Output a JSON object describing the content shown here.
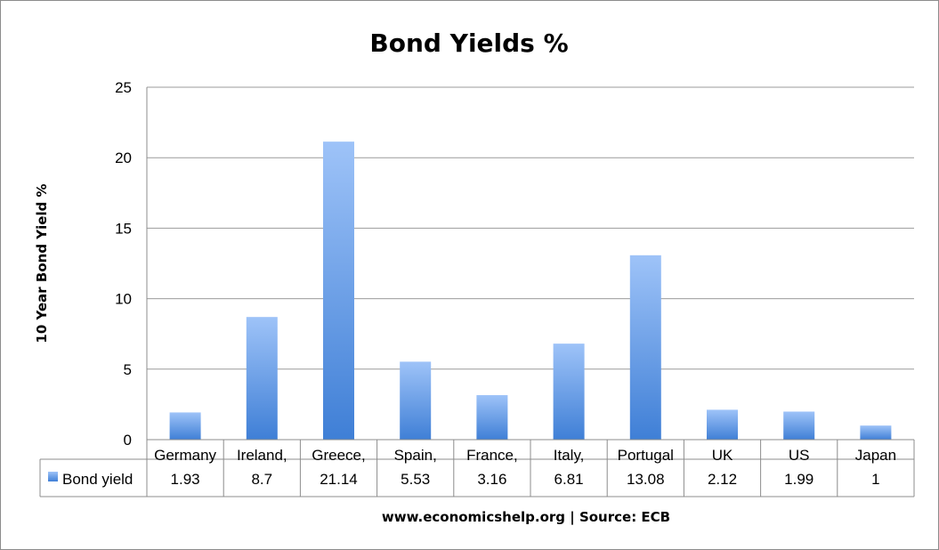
{
  "chart_data": {
    "type": "bar",
    "title": "Bond Yields %",
    "ylabel": "10 Year Bond Yield  %",
    "xlabel": "",
    "categories": [
      "Germany",
      "Ireland,",
      "Greece,",
      "Spain,",
      "France,",
      "Italy,",
      "Portugal",
      "UK",
      "US",
      "Japan"
    ],
    "series": [
      {
        "name": "Bond yield",
        "values": [
          1.93,
          8.7,
          21.14,
          5.53,
          3.16,
          6.81,
          13.08,
          2.12,
          1.99,
          1
        ]
      }
    ],
    "data_table_values": [
      "1.93",
      "8.7",
      "21.14",
      "5.53",
      "3.16",
      "6.81",
      "13.08",
      "2.12",
      "1.99",
      "1"
    ],
    "ylim": [
      0,
      25
    ],
    "yticks": [
      "0",
      "5",
      "10",
      "15",
      "20",
      "25"
    ],
    "grid": true,
    "legend": "data-table-left",
    "source_note": "www.economicshelp.org | Source: ECB",
    "colors": {
      "bar_top": "#9ec3f8",
      "bar_bottom": "#3f7fd6",
      "grid": "#9b9b9b"
    }
  }
}
